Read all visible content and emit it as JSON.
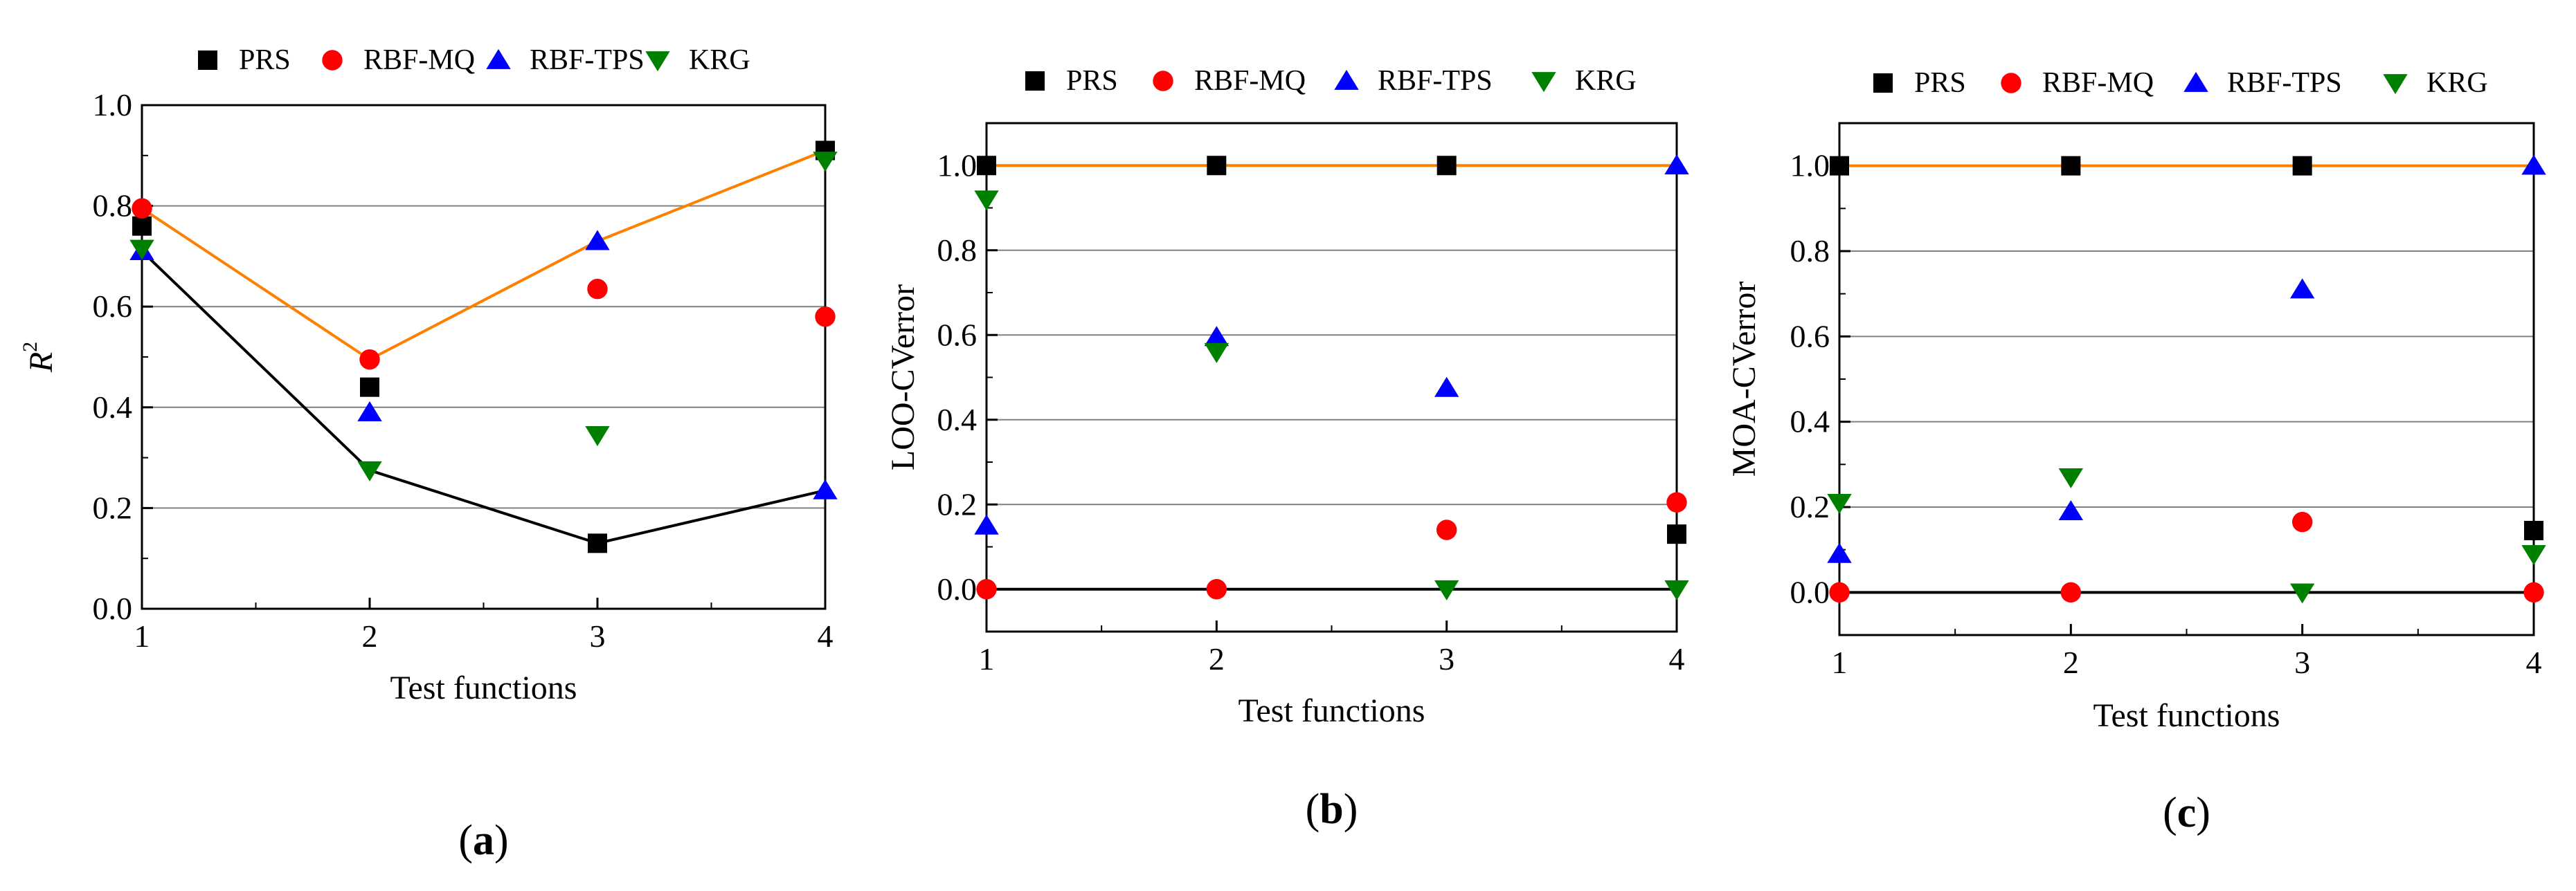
{
  "colors": {
    "PRS": "#000000",
    "RBF-MQ": "#ff0000",
    "RBF-TPS": "#0000ff",
    "KRG": "#008000",
    "upper_line": "#ff8000",
    "lower_line": "#000000",
    "grid": "#808080"
  },
  "chart_data": [
    {
      "type": "scatter",
      "panel": "a",
      "panel_label": {
        "open": "(",
        "letter": "a",
        "close": ")"
      },
      "xlabel": "Test functions",
      "ylabel": {
        "base": "R",
        "sup": "2"
      },
      "x": [
        1,
        2,
        3,
        4
      ],
      "xticks": [
        "1",
        "2",
        "3",
        "4"
      ],
      "xlim": [
        1,
        4
      ],
      "ylim": [
        0,
        1.0
      ],
      "yticks": [
        0.0,
        0.2,
        0.4,
        0.6,
        0.8,
        1.0
      ],
      "ytick_labels": [
        "0.0",
        "0.2",
        "0.4",
        "0.6",
        "0.8",
        "1.0"
      ],
      "grid": true,
      "legend": [
        "PRS",
        "RBF-MQ",
        "RBF-TPS",
        "KRG"
      ],
      "series": [
        {
          "name": "PRS",
          "marker": "square",
          "values": [
            0.76,
            0.44,
            0.13,
            0.91
          ]
        },
        {
          "name": "RBF-MQ",
          "marker": "circle",
          "values": [
            0.795,
            0.495,
            0.635,
            0.58
          ]
        },
        {
          "name": "RBF-TPS",
          "marker": "triangle-up",
          "values": [
            0.71,
            0.39,
            0.73,
            0.235
          ]
        },
        {
          "name": "KRG",
          "marker": "triangle-down",
          "values": [
            0.715,
            0.275,
            0.345,
            0.89
          ]
        }
      ],
      "upper_line": [
        0.795,
        0.495,
        0.73,
        0.91
      ],
      "lower_line": [
        0.71,
        0.275,
        0.13,
        0.235
      ]
    },
    {
      "type": "scatter",
      "panel": "b",
      "panel_label": {
        "open": "(",
        "letter": "b",
        "close": ")"
      },
      "xlabel": "Test functions",
      "ylabel": {
        "base": "LOO-CVerror",
        "sup": ""
      },
      "x": [
        1,
        2,
        3,
        4
      ],
      "xticks": [
        "1",
        "2",
        "3",
        "4"
      ],
      "xlim": [
        1,
        4
      ],
      "ylim": [
        -0.1,
        1.1
      ],
      "yticks": [
        0.0,
        0.2,
        0.4,
        0.6,
        0.8,
        1.0
      ],
      "ytick_labels": [
        "0.0",
        "0.2",
        "0.4",
        "0.6",
        "0.8",
        "1.0"
      ],
      "grid": true,
      "legend": [
        "PRS",
        "RBF-MQ",
        "RBF-TPS",
        "KRG"
      ],
      "series": [
        {
          "name": "PRS",
          "marker": "square",
          "values": [
            1.0,
            1.0,
            1.0,
            0.13
          ]
        },
        {
          "name": "RBF-MQ",
          "marker": "circle",
          "values": [
            0.0,
            0.0,
            0.14,
            0.205
          ]
        },
        {
          "name": "RBF-TPS",
          "marker": "triangle-up",
          "values": [
            0.15,
            0.595,
            0.475,
            1.0
          ]
        },
        {
          "name": "KRG",
          "marker": "triangle-down",
          "values": [
            0.92,
            0.56,
            0.0,
            0.0
          ]
        }
      ],
      "upper_line": [
        1.0,
        1.0,
        1.0,
        1.0
      ],
      "lower_line": [
        0.0,
        0.0,
        0.0,
        0.0
      ]
    },
    {
      "type": "scatter",
      "panel": "c",
      "panel_label": {
        "open": "(",
        "letter": "c",
        "close": ")"
      },
      "xlabel": "Test functions",
      "ylabel": {
        "base": "MOA-CVerror",
        "sup": ""
      },
      "x": [
        1,
        2,
        3,
        4
      ],
      "xticks": [
        "1",
        "2",
        "3",
        "4"
      ],
      "xlim": [
        1,
        4
      ],
      "ylim": [
        -0.1,
        1.1
      ],
      "yticks": [
        0.0,
        0.2,
        0.4,
        0.6,
        0.8,
        1.0
      ],
      "ytick_labels": [
        "0.0",
        "0.2",
        "0.4",
        "0.6",
        "0.8",
        "1.0"
      ],
      "grid": true,
      "legend": [
        "PRS",
        "RBF-MQ",
        "RBF-TPS",
        "KRG"
      ],
      "series": [
        {
          "name": "PRS",
          "marker": "square",
          "values": [
            1.0,
            1.0,
            1.0,
            0.145
          ]
        },
        {
          "name": "RBF-MQ",
          "marker": "circle",
          "values": [
            0.0,
            0.0,
            0.165,
            0.0
          ]
        },
        {
          "name": "RBF-TPS",
          "marker": "triangle-up",
          "values": [
            0.09,
            0.19,
            0.71,
            1.0
          ]
        },
        {
          "name": "KRG",
          "marker": "triangle-down",
          "values": [
            0.21,
            0.27,
            0.0,
            0.09
          ]
        }
      ],
      "upper_line": [
        1.0,
        1.0,
        1.0,
        1.0
      ],
      "lower_line": [
        0.0,
        0.0,
        0.0,
        0.0
      ]
    }
  ]
}
